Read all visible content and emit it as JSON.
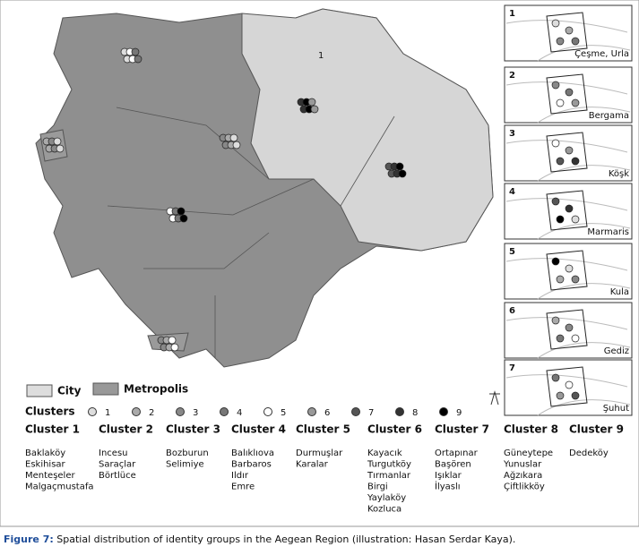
{
  "map_label": "1",
  "legend": {
    "city": "City",
    "metropolis": "Metropolis"
  },
  "clusters_key": {
    "label": "Clusters",
    "numbers": [
      1,
      2,
      3,
      4,
      5,
      6,
      7,
      8,
      9
    ]
  },
  "clusters": [
    {
      "name": "Cluster 1",
      "villages": [
        "Baklaköy",
        "Eskihisar",
        "Menteşeler",
        "Malgaçmustafa"
      ]
    },
    {
      "name": "Cluster 2",
      "villages": [
        "Incesu",
        "Saraçlar",
        "Börtlüce"
      ]
    },
    {
      "name": "Cluster 3",
      "villages": [
        "Bozburun",
        "Selimiye"
      ]
    },
    {
      "name": "Cluster 4",
      "villages": [
        "Balıklıova",
        "Barbaros",
        "Ildır",
        "Emre"
      ]
    },
    {
      "name": "Cluster 5",
      "villages": [
        "Durmuşlar",
        "Karalar"
      ]
    },
    {
      "name": "Cluster 6",
      "villages": [
        "Kayacık",
        "Turgutköy",
        "Tırmanlar",
        "Birgi",
        "Yaylaköy",
        "Kozluca"
      ]
    },
    {
      "name": "Cluster 7",
      "villages": [
        "Ortapınar",
        "Başören",
        "Işıklar",
        "İlyaslı"
      ]
    },
    {
      "name": "Cluster 8",
      "villages": [
        "Güneytepe",
        "Yunuslar",
        "Ağzıkara",
        "Çiftlikköy"
      ]
    },
    {
      "name": "Cluster 9",
      "villages": [
        "Dedeköy"
      ]
    }
  ],
  "insets": [
    {
      "number": "1",
      "place": "Çeşme, Urla"
    },
    {
      "number": "2",
      "place": "Bergama"
    },
    {
      "number": "3",
      "place": "Köşk"
    },
    {
      "number": "4",
      "place": "Marmaris"
    },
    {
      "number": "5",
      "place": "Kula"
    },
    {
      "number": "6",
      "place": "Gediz"
    },
    {
      "number": "7",
      "place": "Şuhut"
    }
  ],
  "caption": {
    "label": "Figure 7:",
    "text": " Spatial distribution of identity groups in the Aegean Region (illustration: Hasan Serdar Kaya)."
  }
}
